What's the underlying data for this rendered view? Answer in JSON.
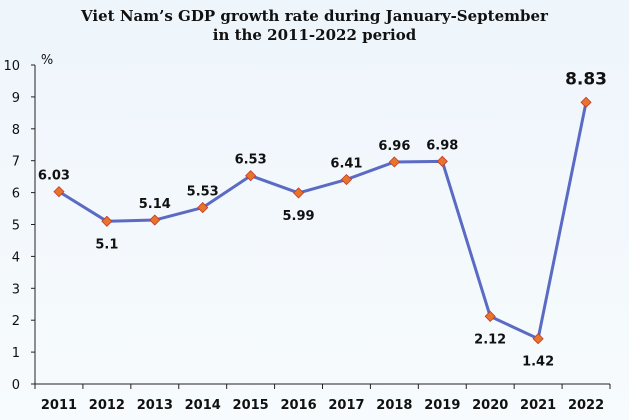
{
  "chart_data": {
    "type": "line",
    "title_lines": [
      "Viet Nam’s GDP growth rate during  January-September",
      "in the 2011-2022 period"
    ],
    "ylabel": "%",
    "xlabel": "",
    "ylim": [
      0,
      10
    ],
    "yticks": [
      "0",
      "1",
      "2",
      "3",
      "4",
      "5",
      "6",
      "7",
      "8",
      "9",
      "10"
    ],
    "categories": [
      "2011",
      "2012",
      "2013",
      "2014",
      "2015",
      "2016",
      "2017",
      "2018",
      "2019",
      "2020",
      "2021",
      "2022"
    ],
    "series": [
      {
        "values": [
          6.03,
          5.1,
          5.14,
          5.53,
          6.53,
          5.99,
          6.41,
          6.96,
          6.98,
          2.12,
          1.42,
          8.83
        ],
        "labels": [
          "6.03",
          "5.1",
          "5.14",
          "5.53",
          "6.53",
          "5.99",
          "6.41",
          "6.96",
          "6.98",
          "2.12",
          "1.42",
          "8.83"
        ]
      }
    ],
    "grid": false,
    "legend": "none",
    "colors": {
      "line": "#5b6bc4",
      "marker_fill": "#e8742a",
      "marker_edge": "#c0392b",
      "axis": "#222222"
    }
  }
}
